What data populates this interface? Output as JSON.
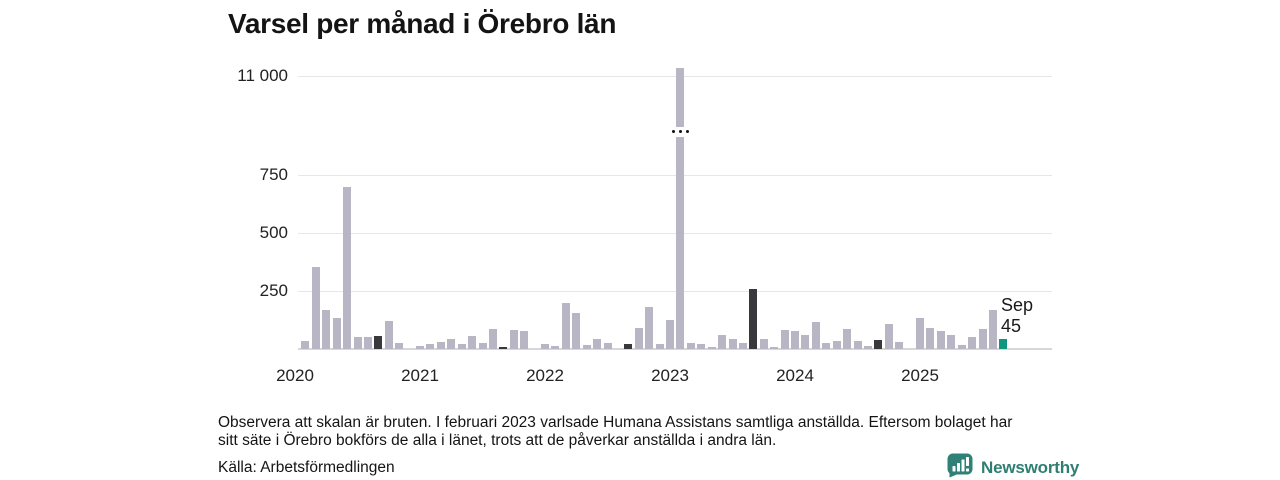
{
  "page": {
    "title": "Varsel per månad i Örebro län"
  },
  "chart_data": {
    "type": "bar",
    "title": "Varsel per månad i Örebro län",
    "xlabel": "",
    "ylabel": "",
    "broken_axis": true,
    "broken_axis_note": "scale broken between 750 and 11 000",
    "grid": "horizontal",
    "y_ticks": [
      {
        "value": 250,
        "label": "250"
      },
      {
        "value": 500,
        "label": "500"
      },
      {
        "value": 750,
        "label": "750"
      },
      {
        "value": 11000,
        "label": "11 000"
      }
    ],
    "x_tick_labels": [
      "2020",
      "2021",
      "2022",
      "2023",
      "2024",
      "2025"
    ],
    "months": [
      "2020-01",
      "2020-02",
      "2020-03",
      "2020-04",
      "2020-05",
      "2020-06",
      "2020-07",
      "2020-08",
      "2020-09",
      "2020-10",
      "2020-11",
      "2020-12",
      "2021-01",
      "2021-02",
      "2021-03",
      "2021-04",
      "2021-05",
      "2021-06",
      "2021-07",
      "2021-08",
      "2021-09",
      "2021-10",
      "2021-11",
      "2021-12",
      "2022-01",
      "2022-02",
      "2022-03",
      "2022-04",
      "2022-05",
      "2022-06",
      "2022-07",
      "2022-08",
      "2022-09",
      "2022-10",
      "2022-11",
      "2022-12",
      "2023-01",
      "2023-02",
      "2023-03",
      "2023-04",
      "2023-05",
      "2023-06",
      "2023-07",
      "2023-08",
      "2023-09",
      "2023-10",
      "2023-11",
      "2023-12",
      "2024-01",
      "2024-02",
      "2024-03",
      "2024-04",
      "2024-05",
      "2024-06",
      "2024-07",
      "2024-08",
      "2024-09",
      "2024-10",
      "2024-11",
      "2024-12",
      "2025-01",
      "2025-02",
      "2025-03",
      "2025-04",
      "2025-05",
      "2025-06",
      "2025-07",
      "2025-08",
      "2025-09"
    ],
    "values": [
      0,
      33,
      352,
      170,
      133,
      700,
      53,
      53,
      57,
      120,
      26,
      0,
      12,
      21,
      29,
      44,
      21,
      56,
      26,
      86,
      10,
      83,
      79,
      0,
      21,
      12,
      200,
      155,
      18,
      41,
      26,
      0,
      21,
      89,
      180,
      23,
      124,
      11030,
      27,
      21,
      10,
      59,
      41,
      26,
      257,
      45,
      9,
      83,
      79,
      61,
      117,
      26,
      33,
      86,
      36,
      14,
      38,
      107,
      29,
      0,
      135,
      92,
      76,
      59,
      18,
      53,
      86,
      166,
      45
    ],
    "highlight": {
      "dark_months": [
        "2020-09",
        "2021-09",
        "2022-09",
        "2023-09",
        "2024-09"
      ],
      "current_month": "2025-09",
      "broken_bar_month": "2023-02"
    },
    "annotation": {
      "line1": "Sep",
      "line2": "45",
      "month": "2025-09",
      "value": 45
    },
    "colors": {
      "bar": "#b8b5c4",
      "bar_dark": "#39383c",
      "bar_current": "#0f967f",
      "gridline": "#e7e7eb",
      "axis_line": "#d6d6db",
      "text": "#171717"
    }
  },
  "footnote": {
    "line1": "Observera att skalan är bruten. I februari 2023 varlsade Humana Assistans samtliga anställda. Eftersom bolaget har",
    "line2": "sitt säte i Örebro bokförs de alla i länet, trots att de påverkar anställda i andra län."
  },
  "source": "Källa: Arbetsförmedlingen",
  "branding": {
    "name": "Newsworthy",
    "color": "#2f7e73"
  }
}
